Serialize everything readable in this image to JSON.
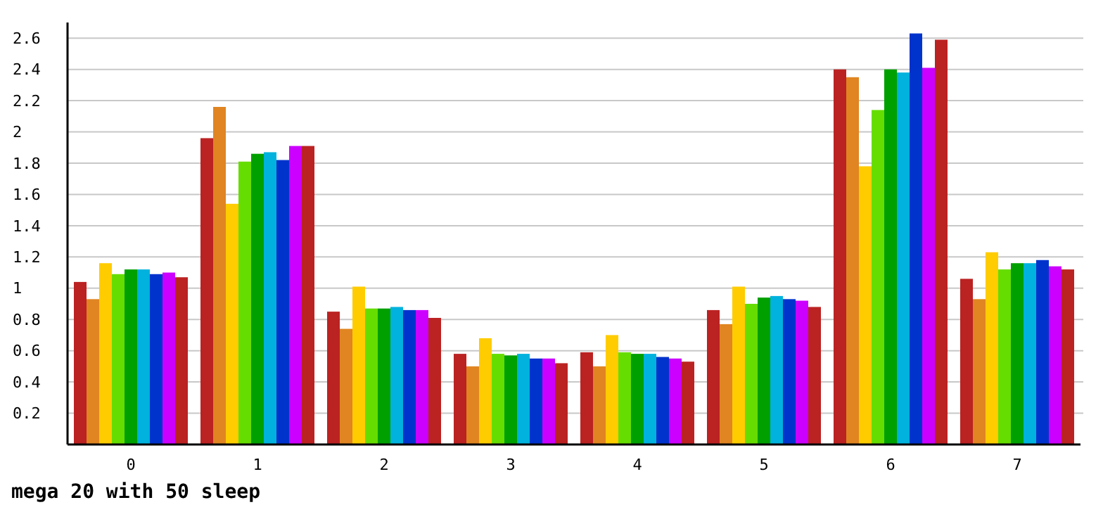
{
  "chart_data": {
    "type": "bar",
    "title": "mega 20 with 50 sleep",
    "categories": [
      "0",
      "1",
      "2",
      "3",
      "4",
      "5",
      "6",
      "7"
    ],
    "series": [
      {
        "color": "#bb2222",
        "values": [
          1.04,
          1.96,
          0.85,
          0.58,
          0.59,
          0.86,
          2.4,
          1.06
        ]
      },
      {
        "color": "#e08522",
        "values": [
          0.93,
          2.16,
          0.74,
          0.5,
          0.5,
          0.77,
          2.35,
          0.93
        ]
      },
      {
        "color": "#ffcc00",
        "values": [
          1.16,
          1.54,
          1.01,
          0.68,
          0.7,
          1.01,
          1.78,
          1.23
        ]
      },
      {
        "color": "#66dd00",
        "values": [
          1.09,
          1.81,
          0.87,
          0.58,
          0.59,
          0.9,
          2.14,
          1.12
        ]
      },
      {
        "color": "#00a000",
        "values": [
          1.12,
          1.86,
          0.87,
          0.57,
          0.58,
          0.94,
          2.4,
          1.16
        ]
      },
      {
        "color": "#00b2dd",
        "values": [
          1.12,
          1.87,
          0.88,
          0.58,
          0.58,
          0.95,
          2.38,
          1.16
        ]
      },
      {
        "color": "#0033cc",
        "values": [
          1.09,
          1.82,
          0.86,
          0.55,
          0.56,
          0.93,
          2.63,
          1.18
        ]
      },
      {
        "color": "#cc00ff",
        "values": [
          1.1,
          1.91,
          0.86,
          0.55,
          0.55,
          0.92,
          2.41,
          1.14
        ]
      },
      {
        "color": "#bb2222",
        "values": [
          1.07,
          1.91,
          0.81,
          0.52,
          0.53,
          0.88,
          2.59,
          1.12
        ]
      }
    ],
    "ylim": [
      0,
      2.7
    ],
    "yticks": [
      0.2,
      0.4,
      0.6,
      0.8,
      1,
      1.2,
      1.4,
      1.6,
      1.8,
      2,
      2.2,
      2.4,
      2.6
    ],
    "grid": "y"
  }
}
